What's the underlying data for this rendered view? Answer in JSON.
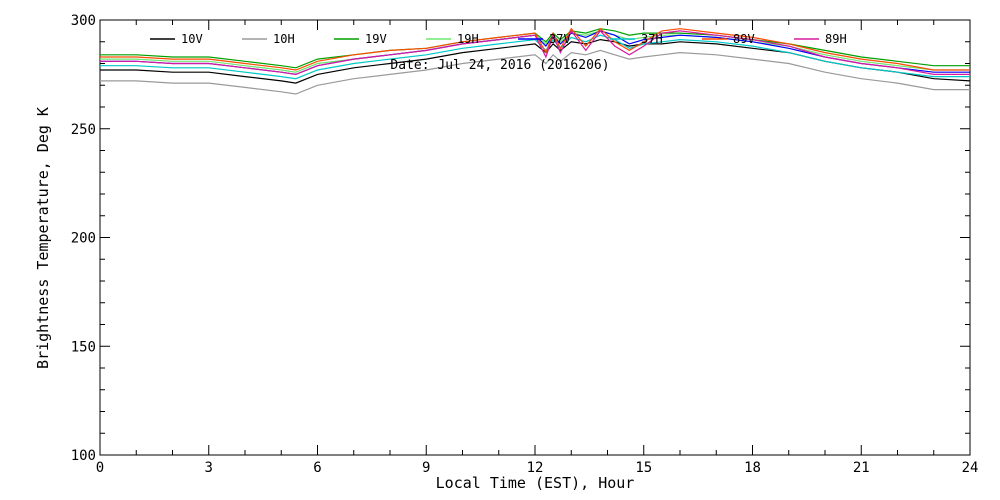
{
  "chart_data": {
    "type": "line",
    "title": "",
    "subtitle": "Date: Jul 24, 2016 (2016206)",
    "xlabel": "Local Time (EST), Hour",
    "ylabel": "Brightness Temperature, Deg K",
    "xlim": [
      0,
      24
    ],
    "ylim": [
      100,
      300
    ],
    "xticks": [
      0,
      3,
      6,
      9,
      12,
      15,
      18,
      21,
      24
    ],
    "yticks": [
      100,
      150,
      200,
      250,
      300
    ],
    "grid": false,
    "legend_position": "top",
    "x": [
      0,
      1,
      2,
      3,
      4,
      5,
      5.4,
      6,
      7,
      8,
      9,
      10,
      11,
      12,
      12.3,
      12.5,
      12.7,
      13,
      13.4,
      13.8,
      14.2,
      14.6,
      15,
      15.5,
      16,
      17,
      18,
      19,
      20,
      21,
      22,
      23,
      24
    ],
    "series": [
      {
        "name": "10V",
        "color": "#000000",
        "values": [
          277,
          277,
          276,
          276,
          274,
          272,
          271,
          275,
          278,
          280,
          282,
          285,
          287,
          289,
          285,
          289,
          286,
          290,
          289,
          291,
          290,
          288,
          289,
          289,
          290,
          289,
          287,
          285,
          281,
          278,
          276,
          273,
          272
        ]
      },
      {
        "name": "10H",
        "color": "#9a9a9a",
        "values": [
          272,
          272,
          271,
          271,
          269,
          267,
          266,
          270,
          273,
          275,
          277,
          280,
          282,
          284,
          280,
          284,
          281,
          285,
          284,
          286,
          284,
          282,
          283,
          284,
          285,
          284,
          282,
          280,
          276,
          273,
          271,
          268,
          268
        ]
      },
      {
        "name": "19V",
        "color": "#00a000",
        "values": [
          284,
          284,
          283,
          283,
          281,
          279,
          278,
          282,
          284,
          286,
          287,
          290,
          292,
          294,
          290,
          294,
          291,
          295,
          294,
          296,
          295,
          293,
          294,
          294,
          294,
          293,
          291,
          289,
          286,
          283,
          281,
          279,
          279
        ]
      },
      {
        "name": "19H",
        "color": "#6ee86e",
        "values": [
          282,
          282,
          281,
          281,
          279,
          277,
          276,
          280,
          282,
          284,
          286,
          289,
          291,
          293,
          289,
          293,
          290,
          294,
          293,
          295,
          293,
          291,
          292,
          293,
          293,
          292,
          290,
          288,
          284,
          281,
          279,
          277,
          277
        ]
      },
      {
        "name": "37V",
        "color": "#0000ff",
        "values": [
          281,
          281,
          280,
          280,
          278,
          276,
          275,
          279,
          282,
          284,
          286,
          289,
          291,
          293,
          288,
          293,
          289,
          294,
          292,
          295,
          293,
          289,
          291,
          292,
          293,
          292,
          290,
          287,
          283,
          280,
          278,
          276,
          276
        ]
      },
      {
        "name": "37H",
        "color": "#00c8c8",
        "values": [
          279,
          279,
          278,
          278,
          276,
          274,
          273,
          277,
          280,
          282,
          284,
          287,
          289,
          291,
          286,
          291,
          287,
          292,
          290,
          293,
          291,
          287,
          289,
          290,
          291,
          290,
          288,
          285,
          281,
          278,
          276,
          274,
          274
        ]
      },
      {
        "name": "89V",
        "color": "#ff4a00",
        "values": [
          283,
          283,
          282,
          282,
          280,
          278,
          277,
          281,
          284,
          286,
          287,
          290,
          292,
          294,
          285,
          294,
          287,
          296,
          288,
          296,
          290,
          286,
          290,
          295,
          296,
          294,
          292,
          289,
          285,
          282,
          280,
          277,
          277
        ]
      },
      {
        "name": "89H",
        "color": "#d81b9e",
        "values": [
          281,
          281,
          280,
          280,
          278,
          276,
          275,
          279,
          282,
          284,
          286,
          289,
          291,
          293,
          283,
          293,
          285,
          295,
          286,
          295,
          288,
          284,
          288,
          294,
          295,
          293,
          291,
          288,
          283,
          280,
          278,
          275,
          275
        ]
      }
    ]
  }
}
